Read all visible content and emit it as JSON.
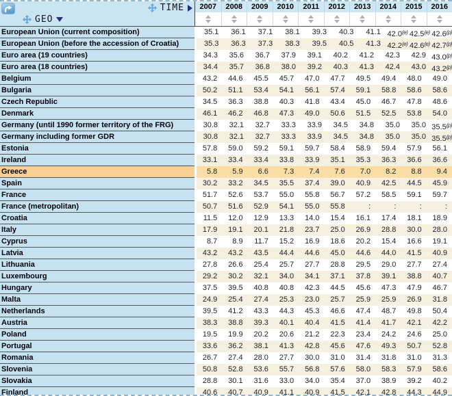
{
  "header": {
    "time_label": "TIME",
    "geo_label": "GEO",
    "years": [
      "2007",
      "2008",
      "2009",
      "2010",
      "2011",
      "2012",
      "2013",
      "2014",
      "2015",
      "2016"
    ],
    "icons": {
      "pivot": "pivot-icon",
      "move": "move-cross-icon",
      "time_expand": "triangle-right-icon",
      "geo_sort": "triangle-down-icon",
      "column_sort": "sort-up-down-icon"
    }
  },
  "colors": {
    "header_blue": "#cde8f4",
    "label_blue": "#c6e2f0",
    "stripe_white": "#ffffff",
    "stripe_cream": "#f5f0e0",
    "highlight_label": "#f9cf93",
    "highlight_data": "#fbdda6",
    "accent_navy": "#252f7d",
    "move_icon_blue": "#68a8d8",
    "sort_gray": "#b0b0b0"
  },
  "table": {
    "flag_legend": {
      "e": "(e)",
      "p": "(p)"
    },
    "missing_symbol": ":",
    "rows": [
      {
        "label": "European Union (current composition)",
        "values": [
          "35.1",
          "36.1",
          "37.1",
          "38.1",
          "39.3",
          "40.3",
          "41.1",
          "42.0(e)",
          "42.5(e)",
          "42.6(p)"
        ]
      },
      {
        "label": "European Union (before the accession of Croatia)",
        "values": [
          "35.3",
          "36.3",
          "37.3",
          "38.3",
          "39.5",
          "40.5",
          "41.3",
          "42.2(e)",
          "42.6(e)",
          "42.7(p)"
        ]
      },
      {
        "label": "Euro area (19 countries)",
        "values": [
          "34.3",
          "35.6",
          "36.7",
          "37.9",
          "39.1",
          "40.2",
          "41.2",
          "42.3",
          "42.9",
          "43.0(p)"
        ]
      },
      {
        "label": "Euro area (18 countries)",
        "values": [
          "34.4",
          "35.7",
          "36.8",
          "38.0",
          "39.2",
          "40.3",
          "41.3",
          "42.4",
          "43.0",
          "43.2(p)"
        ]
      },
      {
        "label": "Belgium",
        "values": [
          "43.2",
          "44.6",
          "45.5",
          "45.7",
          "47.0",
          "47.7",
          "49.5",
          "49.4",
          "48.0",
          "49.0"
        ]
      },
      {
        "label": "Bulgaria",
        "values": [
          "50.2",
          "51.1",
          "53.4",
          "54.1",
          "56.1",
          "57.4",
          "59.1",
          "58.8",
          "58.6",
          "58.6"
        ]
      },
      {
        "label": "Czech Republic",
        "values": [
          "34.5",
          "36.3",
          "38.8",
          "40.3",
          "41.8",
          "43.4",
          "45.0",
          "46.7",
          "47.8",
          "48.6"
        ]
      },
      {
        "label": "Denmark",
        "values": [
          "46.1",
          "46.2",
          "46.8",
          "47.3",
          "49.0",
          "50.6",
          "51.5",
          "52.5",
          "53.8",
          "54.0"
        ]
      },
      {
        "label": "Germany (until 1990 former territory of the FRG)",
        "values": [
          "30.8",
          "32.1",
          "32.7",
          "33.3",
          "33.9",
          "34.5",
          "34.8",
          "35.0",
          "35.0",
          "35.5(p)"
        ]
      },
      {
        "label": "Germany including former GDR",
        "values": [
          "30.8",
          "32.1",
          "32.7",
          "33.3",
          "33.9",
          "34.5",
          "34.8",
          "35.0",
          "35.0",
          "35.5(p)"
        ]
      },
      {
        "label": "Estonia",
        "values": [
          "57.8",
          "59.0",
          "59.2",
          "59.1",
          "59.7",
          "58.4",
          "58.9",
          "59.4",
          "57.9",
          "56.1"
        ]
      },
      {
        "label": "Ireland",
        "values": [
          "33.1",
          "33.4",
          "33.4",
          "33.8",
          "33.9",
          "35.1",
          "35.3",
          "36.3",
          "36.6",
          "36.6"
        ]
      },
      {
        "label": "Greece",
        "highlight": true,
        "values": [
          "5.8",
          "5.9",
          "6.6",
          "7.3",
          "7.4",
          "7.6",
          "7.0",
          "8.2",
          "8.8",
          "9.4"
        ]
      },
      {
        "label": "Spain",
        "values": [
          "30.2",
          "33.2",
          "34.5",
          "35.5",
          "37.4",
          "39.0",
          "40.9",
          "42.5",
          "44.5",
          "45.9"
        ]
      },
      {
        "label": "France",
        "values": [
          "51.7",
          "52.6",
          "53.7",
          "55.0",
          "55.8",
          "56.7",
          "57.2",
          "58.5",
          "59.1",
          "59.7"
        ]
      },
      {
        "label": "France (metropolitan)",
        "values": [
          "50.7",
          "51.6",
          "52.9",
          "54.1",
          "55.0",
          "55.8",
          ":",
          ":",
          ":",
          ":"
        ]
      },
      {
        "label": "Croatia",
        "values": [
          "11.5",
          "12.0",
          "12.9",
          "13.3",
          "14.0",
          "15.4",
          "16.1",
          "17.4",
          "18.1",
          "18.9"
        ]
      },
      {
        "label": "Italy",
        "values": [
          "17.9",
          "19.1",
          "20.1",
          "21.8",
          "23.7",
          "25.0",
          "26.9",
          "28.8",
          "30.0",
          "28.0"
        ]
      },
      {
        "label": "Cyprus",
        "values": [
          "8.7",
          "8.9",
          "11.7",
          "15.2",
          "16.9",
          "18.6",
          "20.2",
          "15.4",
          "16.6",
          "19.1"
        ]
      },
      {
        "label": "Latvia",
        "values": [
          "43.2",
          "43.2",
          "43.5",
          "44.4",
          "44.6",
          "45.0",
          "44.6",
          "44.0",
          "41.5",
          "40.9"
        ]
      },
      {
        "label": "Lithuania",
        "values": [
          "27.8",
          "26.6",
          "25.4",
          "25.7",
          "27.7",
          "28.8",
          "29.5",
          "29.0",
          "27.7",
          "27.4"
        ]
      },
      {
        "label": "Luxembourg",
        "values": [
          "29.2",
          "30.2",
          "32.1",
          "34.0",
          "34.1",
          "37.1",
          "37.8",
          "39.1",
          "38.8",
          "40.7"
        ]
      },
      {
        "label": "Hungary",
        "values": [
          "37.5",
          "39.5",
          "40.8",
          "40.8",
          "42.3",
          "44.5",
          "45.6",
          "47.3",
          "47.9",
          "46.7"
        ]
      },
      {
        "label": "Malta",
        "values": [
          "24.9",
          "25.4",
          "27.4",
          "25.3",
          "23.0",
          "25.7",
          "25.9",
          "25.9",
          "26.9",
          "31.8"
        ]
      },
      {
        "label": "Netherlands",
        "values": [
          "39.5",
          "41.2",
          "43.3",
          "44.3",
          "45.3",
          "46.6",
          "47.4",
          "48.7",
          "49.8",
          "50.4"
        ]
      },
      {
        "label": "Austria",
        "values": [
          "38.3",
          "38.8",
          "39.3",
          "40.1",
          "40.4",
          "41.5",
          "41.4",
          "41.7",
          "42.1",
          "42.2"
        ]
      },
      {
        "label": "Poland",
        "values": [
          "19.5",
          "19.9",
          "20.2",
          "20.6",
          "21.2",
          "22.3",
          "23.4",
          "24.2",
          "24.6",
          "25.0"
        ]
      },
      {
        "label": "Portugal",
        "values": [
          "33.6",
          "36.2",
          "38.1",
          "41.3",
          "42.8",
          "45.6",
          "47.6",
          "49.3",
          "50.7",
          "52.8"
        ]
      },
      {
        "label": "Romania",
        "values": [
          "26.7",
          "27.4",
          "28.0",
          "27.7",
          "30.0",
          "31.0",
          "31.4",
          "31.8",
          "31.0",
          "31.3"
        ]
      },
      {
        "label": "Slovenia",
        "values": [
          "50.8",
          "52.8",
          "53.6",
          "55.7",
          "56.8",
          "57.6",
          "58.0",
          "58.3",
          "57.9",
          "58.6"
        ]
      },
      {
        "label": "Slovakia",
        "values": [
          "28.8",
          "30.1",
          "31.6",
          "33.0",
          "34.0",
          "35.4",
          "37.0",
          "38.9",
          "39.2",
          "40.2"
        ]
      },
      {
        "label": "Finland",
        "values": [
          "40.6",
          "40.7",
          "40.9",
          "41.1",
          "40.9",
          "41.5",
          "42.1",
          "42.8",
          "44.3",
          "44.9"
        ]
      }
    ]
  }
}
